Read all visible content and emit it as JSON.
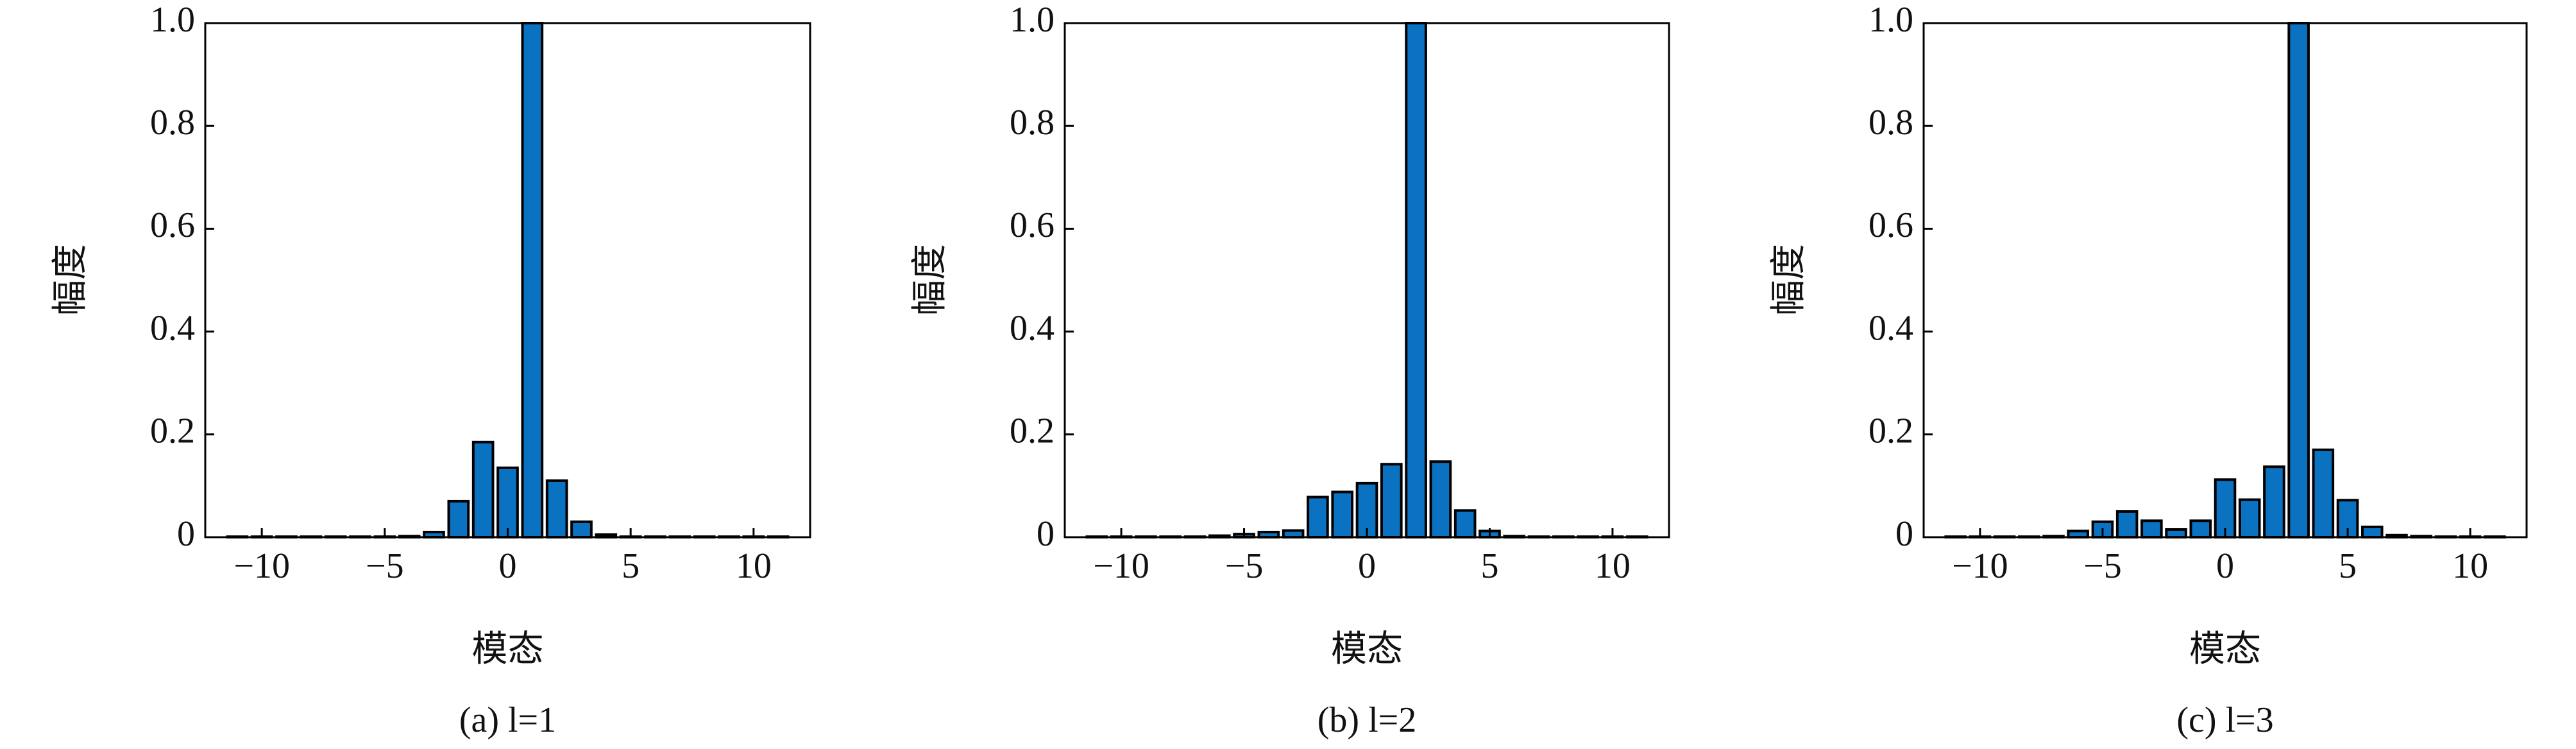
{
  "chart_data": [
    {
      "type": "bar",
      "caption": "(a) l=1",
      "xlabel": "模态",
      "ylabel": "幅度",
      "color": "#0a72c0",
      "x": [
        -11,
        -10,
        -9,
        -8,
        -7,
        -6,
        -5,
        -4,
        -3,
        -2,
        -1,
        0,
        1,
        2,
        3,
        4,
        5,
        6,
        7,
        8,
        9,
        10,
        11
      ],
      "values": [
        0.001,
        0.001,
        0.001,
        0.001,
        0.001,
        0.001,
        0.001,
        0.002,
        0.01,
        0.07,
        0.185,
        0.135,
        1.0,
        0.11,
        0.03,
        0.005,
        0.001,
        0.001,
        0.001,
        0.001,
        0.001,
        0.001,
        0.001
      ],
      "xlim": [
        -12.3,
        12.3
      ],
      "ylim": [
        0,
        1
      ],
      "xticks": [
        {
          "value": -10,
          "label": "−10"
        },
        {
          "value": -5,
          "label": "−5"
        },
        0,
        5,
        10
      ],
      "yticks": [
        0,
        0.2,
        0.4,
        0.6,
        0.8,
        {
          "value": 1,
          "label": "1.0"
        }
      ]
    },
    {
      "type": "bar",
      "caption": "(b) l=2",
      "xlabel": "模态",
      "ylabel": "幅度",
      "color": "#0a72c0",
      "x": [
        -11,
        -10,
        -9,
        -8,
        -7,
        -6,
        -5,
        -4,
        -3,
        -2,
        -1,
        0,
        1,
        2,
        3,
        4,
        5,
        6,
        7,
        8,
        9,
        10,
        11
      ],
      "values": [
        0.001,
        0.001,
        0.001,
        0.001,
        0.001,
        0.003,
        0.006,
        0.01,
        0.013,
        0.078,
        0.088,
        0.105,
        0.142,
        1.0,
        0.147,
        0.052,
        0.012,
        0.002,
        0.001,
        0.001,
        0.001,
        0.001,
        0.001
      ],
      "xlim": [
        -12.3,
        12.3
      ],
      "ylim": [
        0,
        1
      ],
      "xticks": [
        {
          "value": -10,
          "label": "−10"
        },
        {
          "value": -5,
          "label": "−5"
        },
        0,
        5,
        10
      ],
      "yticks": [
        0,
        0.2,
        0.4,
        0.6,
        0.8,
        {
          "value": 1,
          "label": "1.0"
        }
      ]
    },
    {
      "type": "bar",
      "caption": "(c) l=3",
      "xlabel": "模态",
      "ylabel": "幅度",
      "color": "#0a72c0",
      "x": [
        -11,
        -10,
        -9,
        -8,
        -7,
        -6,
        -5,
        -4,
        -3,
        -2,
        -1,
        0,
        1,
        2,
        3,
        4,
        5,
        6,
        7,
        8,
        9,
        10,
        11
      ],
      "values": [
        0.001,
        0.001,
        0.001,
        0.001,
        0.002,
        0.012,
        0.03,
        0.05,
        0.032,
        0.015,
        0.032,
        0.112,
        0.073,
        0.137,
        1.0,
        0.17,
        0.072,
        0.02,
        0.004,
        0.002,
        0.001,
        0.001,
        0.001
      ],
      "xlim": [
        -12.3,
        12.3
      ],
      "ylim": [
        0,
        1
      ],
      "xticks": [
        {
          "value": -10,
          "label": "−10"
        },
        {
          "value": -5,
          "label": "−5"
        },
        0,
        5,
        10
      ],
      "yticks": [
        0,
        0.2,
        0.4,
        0.6,
        0.8,
        {
          "value": 1,
          "label": "1.0"
        }
      ]
    }
  ]
}
